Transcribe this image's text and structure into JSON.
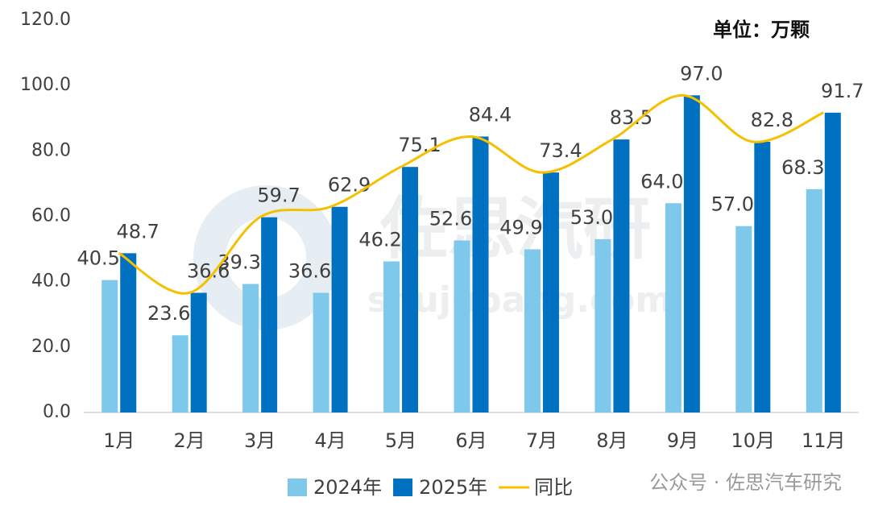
{
  "chart_data": {
    "type": "bar",
    "unit_label": "单位：万颗",
    "categories": [
      "1月",
      "2月",
      "3月",
      "4月",
      "5月",
      "6月",
      "7月",
      "8月",
      "9月",
      "10月",
      "11月"
    ],
    "series": [
      {
        "name": "2024年",
        "color": "#7ec8ec",
        "values": [
          40.5,
          23.6,
          39.3,
          36.6,
          46.2,
          52.6,
          49.9,
          53.0,
          64.0,
          57.0,
          68.3
        ],
        "value_labels": [
          "40.5",
          "23.6",
          "39.3",
          "36.6",
          "46.2",
          "52.6",
          "49.9",
          "53.0",
          "64.0",
          "57.0",
          "68.3"
        ]
      },
      {
        "name": "2025年",
        "color": "#0070c0",
        "values": [
          48.7,
          36.6,
          59.7,
          62.9,
          75.1,
          84.4,
          73.4,
          83.5,
          97.0,
          82.8,
          91.7
        ],
        "value_labels": [
          "48.7",
          "36.6",
          "59.7",
          "62.9",
          "75.1",
          "84.4",
          "73.4",
          "83.5",
          "97.0",
          "82.8",
          "91.7"
        ]
      },
      {
        "name": "同比",
        "color": "#f5c000",
        "kind": "line",
        "values": [
          48.7,
          36.6,
          59.7,
          62.9,
          75.1,
          84.4,
          73.4,
          83.5,
          97.0,
          82.8,
          91.7
        ]
      }
    ],
    "ylim": [
      0,
      120
    ],
    "yticks": [
      {
        "value": 0,
        "label": "0.0"
      },
      {
        "value": 20,
        "label": "20.0"
      },
      {
        "value": 40,
        "label": "40.0"
      },
      {
        "value": 60,
        "label": "60.0"
      },
      {
        "value": 80,
        "label": "80.0"
      },
      {
        "value": 100,
        "label": "100.0"
      },
      {
        "value": 120,
        "label": "120.0"
      }
    ],
    "grid": false,
    "watermarks": [
      "佐思汽研",
      "shujubang.com",
      "公众号 · 佐思汽车研究"
    ]
  }
}
